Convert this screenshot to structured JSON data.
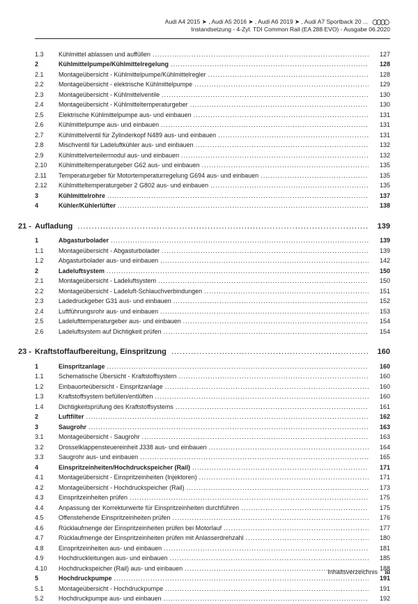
{
  "header": {
    "line1": "Audi A4 2015 ➤ , Audi A5 2016 ➤ , Audi A6 2019 ➤ , Audi A7 Sportback 20 ...",
    "line2": "Instandsetzung - 4-Zyl. TDI Common Rail (EA 288 EVO) - Ausgabe 06.2020"
  },
  "sections": [
    {
      "type": "group",
      "rows": [
        {
          "n": "1.3",
          "t": "Kühlmittel ablassen und auffüllen",
          "p": "127",
          "b": false
        },
        {
          "n": "2",
          "t": "Kühlmittelpumpe/Kühlmittelregelung",
          "p": "128",
          "b": true
        },
        {
          "n": "2.1",
          "t": "Montageübersicht - Kühlmittelpumpe/Kühlmittelregler",
          "p": "128",
          "b": false
        },
        {
          "n": "2.2",
          "t": "Montageübersicht - elektrische Kühlmittelpumpe",
          "p": "129",
          "b": false
        },
        {
          "n": "2.3",
          "t": "Montageübersicht - Kühlmittelventile",
          "p": "130",
          "b": false
        },
        {
          "n": "2.4",
          "t": "Montageübersicht - Kühlmitteltemperaturgeber",
          "p": "130",
          "b": false
        },
        {
          "n": "2.5",
          "t": "Elektrische Kühlmittelpumpe aus- und einbauen",
          "p": "131",
          "b": false
        },
        {
          "n": "2.6",
          "t": "Kühlmittelpumpe aus- und einbauen",
          "p": "131",
          "b": false
        },
        {
          "n": "2.7",
          "t": "Kühlmittelventil für Zylinderkopf N489 aus- und einbauen",
          "p": "131",
          "b": false
        },
        {
          "n": "2.8",
          "t": "Mischventil für Ladeluftkühler aus- und einbauen",
          "p": "132",
          "b": false
        },
        {
          "n": "2.9",
          "t": "Kühlmittelverteilermodul aus- und einbauen",
          "p": "132",
          "b": false
        },
        {
          "n": "2.10",
          "t": "Kühlmitteltemperaturgeber G62 aus- und einbauen",
          "p": "135",
          "b": false
        },
        {
          "n": "2.11",
          "t": "Temperaturgeber für Motortemperaturregelung G694 aus- und einbauen",
          "p": "135",
          "b": false
        },
        {
          "n": "2.12",
          "t": "Kühlmitteltemperaturgeber 2 G802 aus- und einbauen",
          "p": "135",
          "b": false
        },
        {
          "n": "3",
          "t": "Kühlmittelrohre",
          "p": "137",
          "b": true
        },
        {
          "n": "4",
          "t": "Kühler/Kühlerlüfter",
          "p": "138",
          "b": true
        }
      ]
    },
    {
      "type": "chapter",
      "num": "21 -",
      "title": "Aufladung",
      "page": "139"
    },
    {
      "type": "group",
      "rows": [
        {
          "n": "1",
          "t": "Abgasturbolader",
          "p": "139",
          "b": true
        },
        {
          "n": "1.1",
          "t": "Montageübersicht - Abgasturbolader",
          "p": "139",
          "b": false
        },
        {
          "n": "1.2",
          "t": "Abgasturbolader aus- und einbauen",
          "p": "142",
          "b": false
        },
        {
          "n": "2",
          "t": "Ladeluftsystem",
          "p": "150",
          "b": true
        },
        {
          "n": "2.1",
          "t": "Montageübersicht - Ladeluftsystem",
          "p": "150",
          "b": false
        },
        {
          "n": "2.2",
          "t": "Montageübersicht - Ladeluft-Schlauchverbindungen",
          "p": "151",
          "b": false
        },
        {
          "n": "2.3",
          "t": "Ladedruckgeber G31 aus- und einbauen",
          "p": "152",
          "b": false
        },
        {
          "n": "2.4",
          "t": "Luftführungsrohr aus- und einbauen",
          "p": "153",
          "b": false
        },
        {
          "n": "2.5",
          "t": "Ladelufttemperaturgeber aus- und einbauen",
          "p": "154",
          "b": false
        },
        {
          "n": "2.6",
          "t": "Ladeluftsystem auf Dichtigkeit prüfen",
          "p": "154",
          "b": false
        }
      ]
    },
    {
      "type": "chapter",
      "num": "23 -",
      "title": "Kraftstoffaufbereitung, Einspritzung",
      "page": "160"
    },
    {
      "type": "group",
      "rows": [
        {
          "n": "1",
          "t": "Einspritzanlage",
          "p": "160",
          "b": true
        },
        {
          "n": "1.1",
          "t": "Schematische Übersicht - Kraftstoffsystem",
          "p": "160",
          "b": false
        },
        {
          "n": "1.2",
          "t": "Einbauorteübersicht - Einspritzanlage",
          "p": "160",
          "b": false
        },
        {
          "n": "1.3",
          "t": "Kraftstoffsystem befüllen/entlüften",
          "p": "160",
          "b": false
        },
        {
          "n": "1.4",
          "t": "Dichtigkeitsprüfung des Kraftstoffsystems",
          "p": "161",
          "b": false
        },
        {
          "n": "2",
          "t": "Luftfilter",
          "p": "162",
          "b": true
        },
        {
          "n": "3",
          "t": "Saugrohr",
          "p": "163",
          "b": true
        },
        {
          "n": "3.1",
          "t": "Montageübersicht - Saugrohr",
          "p": "163",
          "b": false
        },
        {
          "n": "3.2",
          "t": "Drosselklappensteuereinheit J338 aus- und einbauen",
          "p": "164",
          "b": false
        },
        {
          "n": "3.3",
          "t": "Saugrohr aus- und einbauen",
          "p": "165",
          "b": false
        },
        {
          "n": "4",
          "t": "Einspritzeinheiten/Hochdruckspeicher (Rail)",
          "p": "171",
          "b": true
        },
        {
          "n": "4.1",
          "t": "Montageübersicht - Einspritzeinheiten (Injektoren)",
          "p": "171",
          "b": false
        },
        {
          "n": "4.2",
          "t": "Montageübersicht - Hochdruckspeicher (Rail)",
          "p": "173",
          "b": false
        },
        {
          "n": "4.3",
          "t": "Einspritzeinheiten prüfen",
          "p": "175",
          "b": false
        },
        {
          "n": "4.4",
          "t": "Anpassung der Korrekturwerte für Einspritzeinheiten durchführen",
          "p": "175",
          "b": false
        },
        {
          "n": "4.5",
          "t": "Offenstehende Einspritzeinheiten prüfen",
          "p": "176",
          "b": false
        },
        {
          "n": "4.6",
          "t": "Rücklaufmenge der Einspritzeinheiten prüfen bei Motorlauf",
          "p": "177",
          "b": false
        },
        {
          "n": "4.7",
          "t": "Rücklaufmenge der Einspritzeinheiten prüfen mit Anlasserdrehzahl",
          "p": "180",
          "b": false
        },
        {
          "n": "4.8",
          "t": "Einspritzeinheiten aus- und einbauen",
          "p": "181",
          "b": false
        },
        {
          "n": "4.9",
          "t": "Hochdruckleitungen aus- und einbauen",
          "p": "185",
          "b": false
        },
        {
          "n": "4.10",
          "t": "Hochdruckspeicher (Rail) aus- und einbauen",
          "p": "188",
          "b": false
        },
        {
          "n": "5",
          "t": "Hochdruckpumpe",
          "p": "191",
          "b": true
        },
        {
          "n": "5.1",
          "t": "Montageübersicht - Hochdruckpumpe",
          "p": "191",
          "b": false
        },
        {
          "n": "5.2",
          "t": "Hochdruckpumpe aus- und einbauen",
          "p": "192",
          "b": false
        }
      ]
    }
  ],
  "footer": {
    "label": "Inhaltsverzeichnis",
    "page": "iii"
  }
}
